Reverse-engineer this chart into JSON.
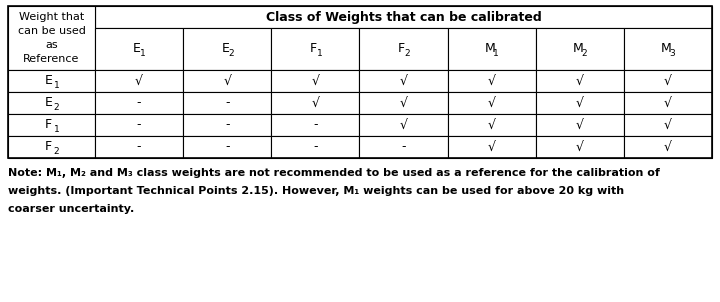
{
  "header_top": "Class of Weights that can be calibrated",
  "row_header_label": "Weight that\ncan be used\nas\nReference",
  "col_header_mains": [
    "E",
    "E",
    "F",
    "F",
    "M",
    "M",
    "M"
  ],
  "col_header_subs": [
    "1",
    "2",
    "1",
    "2",
    "1",
    "2",
    "3"
  ],
  "row_label_mains": [
    "E",
    "E",
    "F",
    "F"
  ],
  "row_label_subs": [
    "1",
    "2",
    "1",
    "2"
  ],
  "table_data": [
    [
      "√",
      "√",
      "√",
      "√",
      "√",
      "√",
      "√"
    ],
    [
      "-",
      "-",
      "√",
      "√",
      "√",
      "√",
      "√"
    ],
    [
      "-",
      "-",
      "-",
      "√",
      "√",
      "√",
      "√"
    ],
    [
      "-",
      "-",
      "-",
      "-",
      "√",
      "√",
      "√"
    ]
  ],
  "note_line1": "Note: M₁, M₂ and M₃ class weights are not recommended to be used as a reference for the calibration of",
  "note_line2": "weights. (Important Technical Points 2.15). However, M₁ weights can be used for above 20 kg with",
  "note_line3": "coarser uncertainty.",
  "bg_color": "#ffffff",
  "line_color": "#000000",
  "cell_fontsize": 8.5,
  "note_fontsize": 8.0
}
